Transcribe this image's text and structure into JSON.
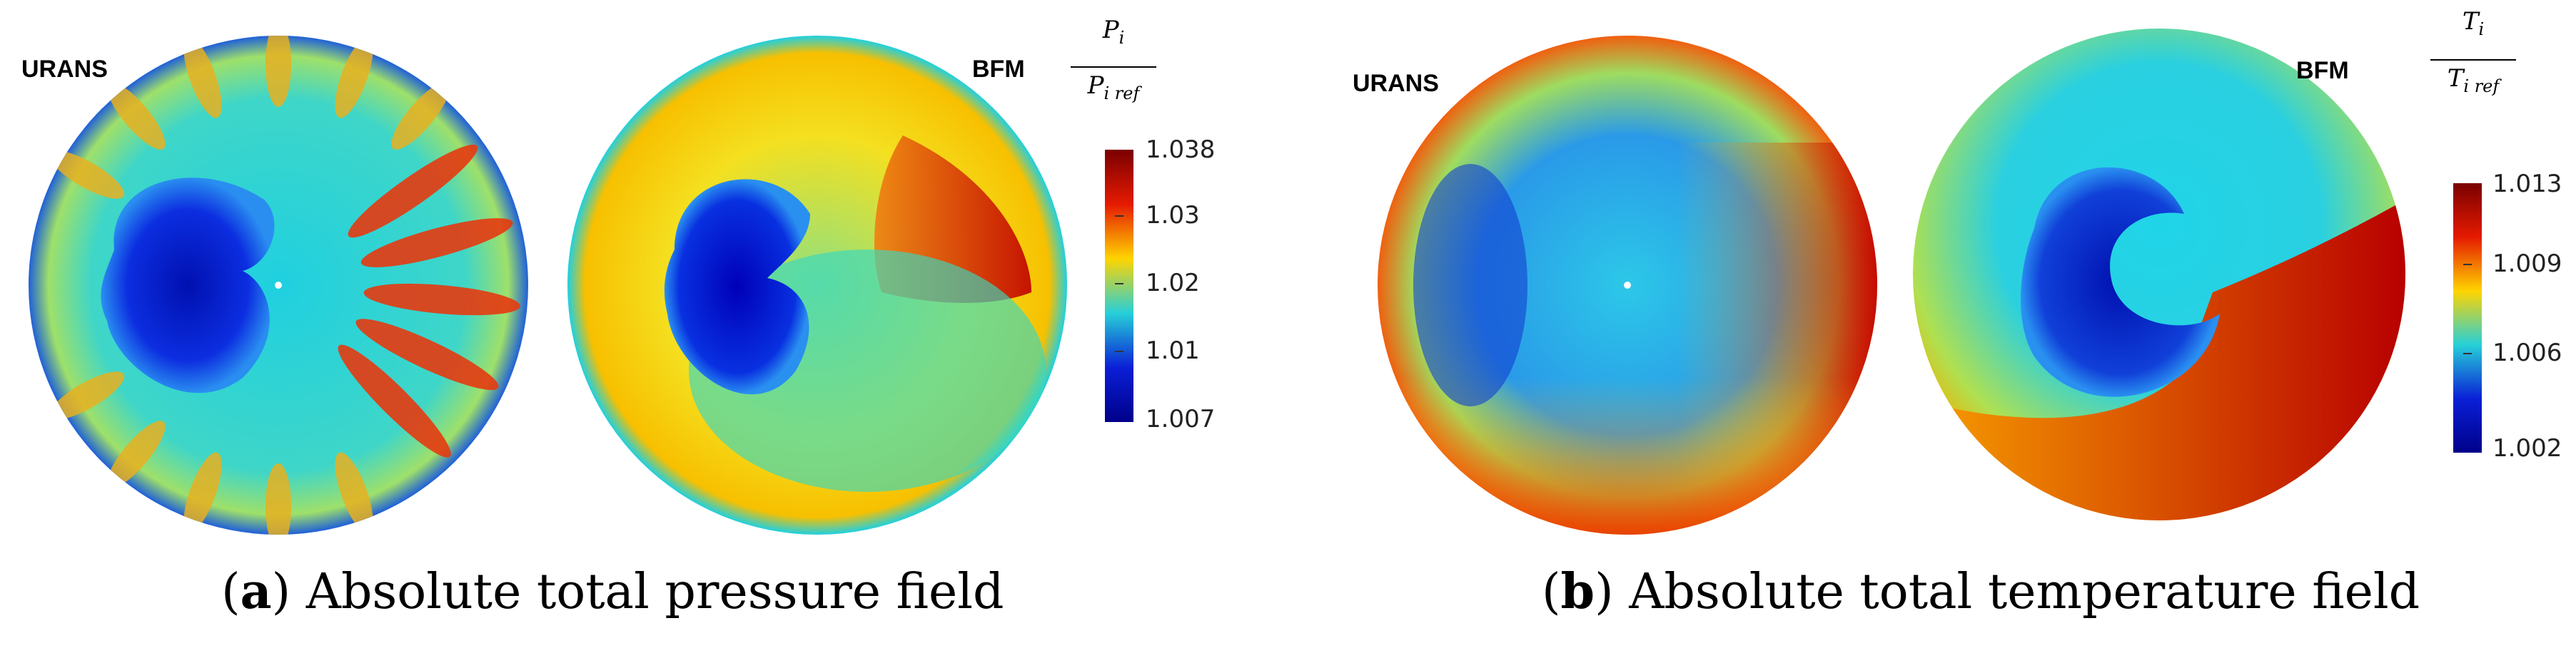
{
  "panels": [
    {
      "id": "a",
      "left_label": "URANS",
      "right_label": "BFM",
      "colorbar": {
        "title_numerator": "P",
        "title_numerator_sub": "i",
        "title_denominator": "P",
        "title_denominator_sub": "i ref",
        "ticks": [
          "1.038",
          "1.03",
          "1.02",
          "1.01",
          "1.007"
        ],
        "colors": [
          "#7a0000",
          "#e51a00",
          "#ffd400",
          "#26d0d8",
          "#0a1fd6",
          "#00008a"
        ]
      },
      "caption_letter": "a",
      "caption_text": " Absolute total pressure field"
    },
    {
      "id": "b",
      "left_label": "URANS",
      "right_label": "BFM",
      "colorbar": {
        "title_numerator": "T",
        "title_numerator_sub": "i",
        "title_denominator": "T",
        "title_denominator_sub": "i ref",
        "ticks": [
          "1.013",
          "1.009",
          "1.006",
          "1.002"
        ],
        "colors": [
          "#7a0000",
          "#e51a00",
          "#ffd400",
          "#26d0d8",
          "#0a1fd6",
          "#00008a"
        ]
      },
      "caption_letter": "b",
      "caption_text": " Absolute total temperature field"
    }
  ]
}
